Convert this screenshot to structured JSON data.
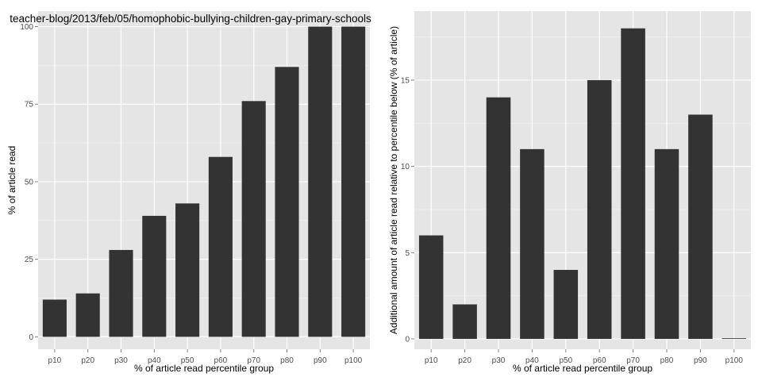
{
  "chart_data": [
    {
      "type": "bar",
      "title": "teacher-blog/2013/feb/05/homophobic-bullying-children-gay-primary-schools",
      "xlabel": "% of article read percentile group",
      "ylabel": "% of article read",
      "categories": [
        "p10",
        "p20",
        "p30",
        "p40",
        "p50",
        "p60",
        "p70",
        "p80",
        "p90",
        "p100"
      ],
      "values": [
        12,
        14,
        28,
        39,
        43,
        58,
        76,
        87,
        100,
        100
      ],
      "ylim": [
        -4,
        105
      ],
      "yticks": [
        0,
        25,
        50,
        75,
        100
      ],
      "grid": true,
      "bar_color": "#333333",
      "panel_color": "#e5e5e5"
    },
    {
      "type": "bar",
      "title": "",
      "xlabel": "% of article read percentile group",
      "ylabel": "Additional amount of article read relative to percentile below (% of article)",
      "categories": [
        "p10",
        "p20",
        "p30",
        "p40",
        "p50",
        "p60",
        "p70",
        "p80",
        "p90",
        "p100"
      ],
      "values": [
        6,
        2,
        14,
        11,
        4,
        15,
        18,
        11,
        13,
        0
      ],
      "ylim": [
        -0.6,
        19
      ],
      "yticks": [
        0,
        5,
        10,
        15
      ],
      "grid": true,
      "bar_color": "#333333",
      "panel_color": "#e5e5e5"
    }
  ]
}
